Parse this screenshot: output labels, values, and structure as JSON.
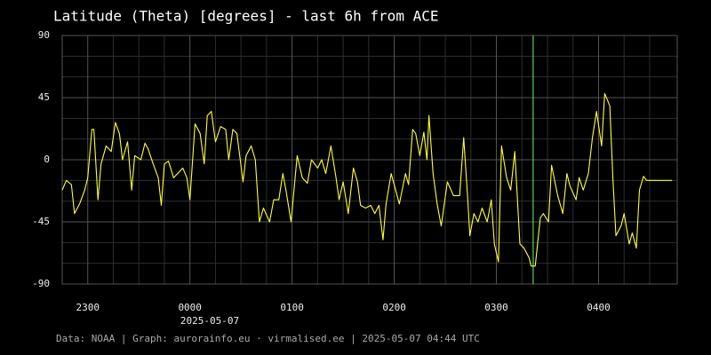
{
  "chart_data": {
    "type": "line",
    "title": "Latitude (Theta) [degrees] - last 6h from ACE",
    "date_label": "2025-05-07",
    "footer": "Data: NOAA | Graph: aurorainfo.eu · virmalised.ee | 2025-05-07 04:44 UTC",
    "color": "#ffff33",
    "marker_x": 27.36,
    "marker_color": "#66ff66",
    "grid": true,
    "xlim": [
      22.75,
      28.77
    ],
    "ylim": [
      -90,
      90
    ],
    "xticks": [
      {
        "value": 23,
        "label": "2300"
      },
      {
        "value": 24,
        "label": "0000"
      },
      {
        "value": 25,
        "label": "0100"
      },
      {
        "value": 26,
        "label": "0200"
      },
      {
        "value": 27,
        "label": "0300"
      },
      {
        "value": 28,
        "label": "0400"
      }
    ],
    "yticks": [
      90,
      45,
      0,
      -45,
      -90
    ],
    "xminor": [
      23.25,
      23.5,
      23.75,
      24.25,
      24.5,
      24.75,
      25.25,
      25.5,
      25.75,
      26.25,
      26.5,
      26.75,
      27.25,
      27.5,
      27.75,
      28.25,
      28.5
    ],
    "yminor": [
      75,
      60,
      30,
      15,
      -15,
      -30,
      -60,
      -75
    ],
    "x": [
      22.75,
      22.79,
      22.84,
      22.87,
      22.92,
      22.97,
      23.0,
      23.04,
      23.06,
      23.1,
      23.13,
      23.18,
      23.23,
      23.27,
      23.31,
      23.34,
      23.39,
      23.43,
      23.46,
      23.52,
      23.56,
      23.59,
      23.64,
      23.69,
      23.72,
      23.75,
      23.79,
      23.84,
      23.88,
      23.93,
      23.97,
      24.0,
      24.05,
      24.1,
      24.14,
      24.17,
      24.21,
      24.25,
      24.3,
      24.35,
      24.38,
      24.42,
      24.46,
      24.52,
      24.55,
      24.6,
      24.64,
      24.68,
      24.72,
      24.78,
      24.82,
      24.87,
      24.91,
      24.94,
      24.99,
      25.05,
      25.1,
      25.15,
      25.19,
      25.25,
      25.29,
      25.33,
      25.38,
      25.43,
      25.46,
      25.5,
      25.55,
      25.6,
      25.64,
      25.67,
      25.72,
      25.77,
      25.81,
      25.85,
      25.89,
      25.92,
      25.97,
      26.01,
      26.05,
      26.11,
      26.14,
      26.18,
      26.21,
      26.25,
      26.29,
      26.32,
      26.34,
      26.38,
      26.42,
      26.46,
      26.52,
      26.58,
      26.64,
      26.68,
      26.72,
      26.74,
      26.78,
      26.82,
      26.86,
      26.91,
      26.95,
      26.98,
      27.02,
      27.05,
      27.1,
      27.14,
      27.18,
      27.23,
      27.27,
      27.32,
      27.34,
      27.38,
      27.43,
      27.46,
      27.51,
      27.54,
      27.6,
      27.65,
      27.69,
      27.72,
      27.78,
      27.81,
      27.85,
      27.9,
      27.94,
      27.98,
      28.03,
      28.06,
      28.11,
      28.14,
      28.17,
      28.22,
      28.25,
      28.3,
      28.33,
      28.37,
      28.4,
      28.44,
      28.47,
      28.72
    ],
    "values": [
      -22,
      -15,
      -18,
      -39,
      -32,
      -22,
      -13,
      22,
      22,
      -29,
      -3,
      10,
      6,
      27,
      19,
      0,
      13,
      -22,
      3,
      0,
      12,
      8,
      -3,
      -13,
      -33,
      -3,
      -1,
      -13,
      -10,
      -6,
      -13,
      -29,
      26,
      19,
      -3,
      32,
      35,
      13,
      24,
      22,
      0,
      22,
      19,
      -16,
      3,
      10,
      0,
      -45,
      -35,
      -45,
      -29,
      -29,
      -10,
      -22,
      -45,
      3,
      -13,
      -17,
      0,
      -6,
      0,
      -10,
      10,
      -13,
      -29,
      -16,
      -39,
      -6,
      -16,
      -33,
      -35,
      -33,
      -39,
      -33,
      -58,
      -32,
      -10,
      -21,
      -32,
      -10,
      -18,
      22,
      19,
      3,
      20,
      0,
      32,
      -10,
      -32,
      -48,
      -16,
      -26,
      -26,
      16,
      -29,
      -55,
      -39,
      -45,
      -35,
      -45,
      -29,
      -61,
      -74,
      10,
      -13,
      -22,
      6,
      -61,
      -64,
      -71,
      -77,
      -77,
      -42,
      -39,
      -45,
      -4,
      -26,
      -39,
      -10,
      -19,
      -29,
      -13,
      -22,
      -10,
      16,
      35,
      10,
      48,
      39,
      -13,
      -55,
      -48,
      -39,
      -61,
      -53,
      -64,
      -22,
      -12,
      -15,
      -15
    ]
  }
}
